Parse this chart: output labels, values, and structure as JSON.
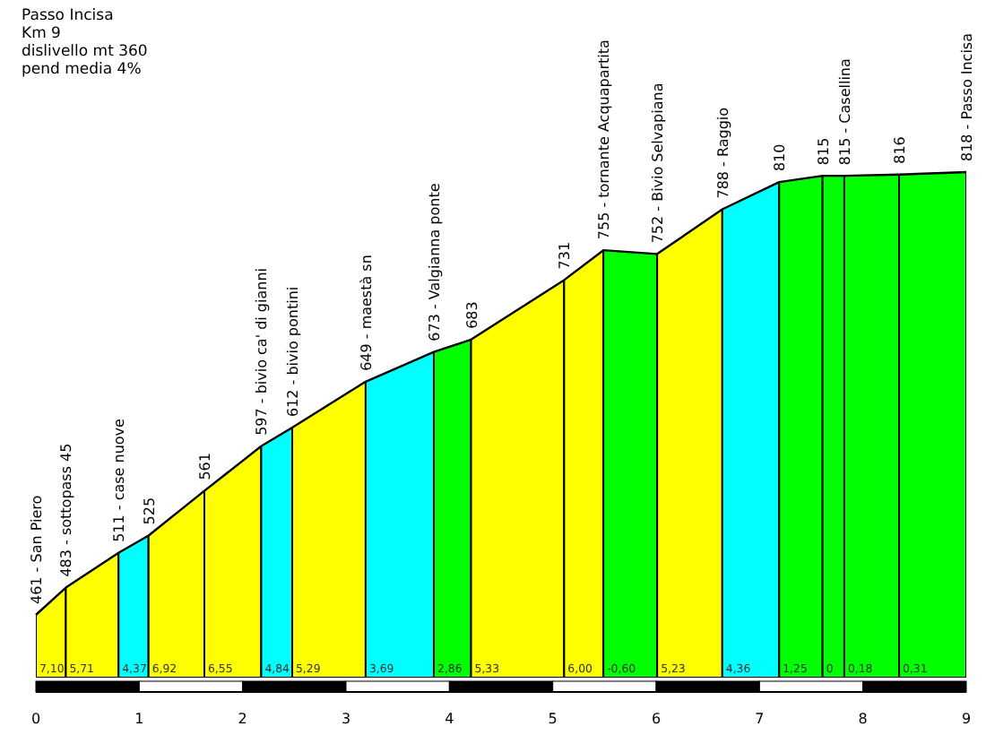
{
  "chart_data": {
    "type": "line",
    "title": "Passo Incisa",
    "subtitle": "Km 9",
    "x": [
      0,
      0.29,
      0.8,
      1.09,
      1.63,
      2.18,
      2.48,
      3.19,
      3.85,
      4.21,
      5.11,
      5.49,
      6.01,
      6.64,
      7.19,
      7.61,
      7.82,
      8.35,
      9
    ],
    "series": [
      {
        "color": "#000000",
        "values": [
          461,
          483,
          511,
          525,
          561,
          597,
          612,
          649,
          673,
          683,
          731,
          755,
          752,
          788,
          810,
          815,
          815,
          816,
          818
        ],
        "value_labels": [
          "461 - San Piero",
          "483 - sottopass 45",
          "511 - case nuove",
          "525",
          "561",
          "597 - bivio ca' di gianni",
          "612 - bivio pontini",
          "649 - maestà sn",
          "673 - Valgianna ponte",
          "683",
          "731",
          "755 - tornante Acquapartita",
          "752 - Bivio Selvapiana",
          "788 - Raggio",
          "810",
          "815",
          "815 - Casellina",
          "816",
          "818 - Passo Incisa"
        ]
      }
    ],
    "bands": [
      {
        "axis": "x",
        "from": 0,
        "to": 0.29,
        "color": "#ffff00",
        "label": "7,10"
      },
      {
        "axis": "x",
        "from": 0.29,
        "to": 0.8,
        "color": "#ffff00",
        "label": "5,71"
      },
      {
        "axis": "x",
        "from": 0.8,
        "to": 1.09,
        "color": "#00ffff",
        "label": "4,37"
      },
      {
        "axis": "x",
        "from": 1.09,
        "to": 1.63,
        "color": "#ffff00",
        "label": "6,92"
      },
      {
        "axis": "x",
        "from": 1.63,
        "to": 2.18,
        "color": "#ffff00",
        "label": "6,55"
      },
      {
        "axis": "x",
        "from": 2.18,
        "to": 2.48,
        "color": "#00ffff",
        "label": "4,84"
      },
      {
        "axis": "x",
        "from": 2.48,
        "to": 3.19,
        "color": "#ffff00",
        "label": "5,29"
      },
      {
        "axis": "x",
        "from": 3.19,
        "to": 3.85,
        "color": "#00ffff",
        "label": "3,69"
      },
      {
        "axis": "x",
        "from": 3.85,
        "to": 4.21,
        "color": "#00ff00",
        "label": "2,86"
      },
      {
        "axis": "x",
        "from": 4.21,
        "to": 5.11,
        "color": "#ffff00",
        "label": "5,33"
      },
      {
        "axis": "x",
        "from": 5.11,
        "to": 5.49,
        "color": "#ffff00",
        "label": "6,00"
      },
      {
        "axis": "x",
        "from": 5.49,
        "to": 6.01,
        "color": "#00ff00",
        "label": "-0,60"
      },
      {
        "axis": "x",
        "from": 6.01,
        "to": 6.64,
        "color": "#ffff00",
        "label": "5,23"
      },
      {
        "axis": "x",
        "from": 6.64,
        "to": 7.19,
        "color": "#00ffff",
        "label": "4,36"
      },
      {
        "axis": "x",
        "from": 7.19,
        "to": 7.61,
        "color": "#00ff00",
        "label": "1,25"
      },
      {
        "axis": "x",
        "from": 7.61,
        "to": 7.82,
        "color": "#00ff00",
        "label": "0"
      },
      {
        "axis": "x",
        "from": 7.82,
        "to": 8.35,
        "color": "#00ff00",
        "label": "0,18"
      },
      {
        "axis": "x",
        "from": 8.35,
        "to": 9,
        "color": "#00ff00",
        "label": "0,31"
      }
    ],
    "annotations": [
      "dislivello mt 360",
      "pend media 4%"
    ],
    "xlim": [
      0,
      9
    ],
    "xticks": [
      0,
      1,
      2,
      3,
      4,
      5,
      6,
      7,
      8,
      9
    ],
    "tick_labels": "x",
    "grid": false
  }
}
